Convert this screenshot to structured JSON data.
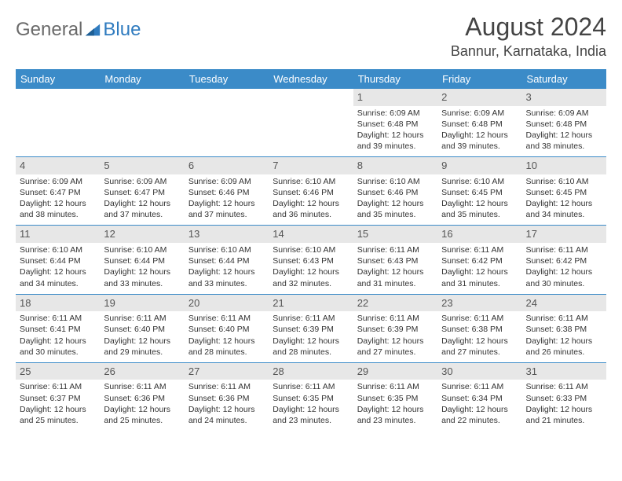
{
  "logo": {
    "general": "General",
    "blue": "Blue"
  },
  "title": "August 2024",
  "location": "Bannur, Karnataka, India",
  "colors": {
    "header_bg": "#3b8bc8",
    "header_text": "#ffffff",
    "daynum_bg": "#e7e7e7",
    "border": "#3b8bc8",
    "text": "#333333",
    "logo_gray": "#6a6a6a",
    "logo_blue": "#2f7bbf"
  },
  "typography": {
    "title_fontsize": 32,
    "location_fontsize": 18,
    "dayhead_fontsize": 13,
    "daynum_fontsize": 13,
    "cell_fontsize": 10.5
  },
  "day_headers": [
    "Sunday",
    "Monday",
    "Tuesday",
    "Wednesday",
    "Thursday",
    "Friday",
    "Saturday"
  ],
  "weeks": [
    [
      {
        "n": "",
        "sr": "",
        "ss": "",
        "dl": ""
      },
      {
        "n": "",
        "sr": "",
        "ss": "",
        "dl": ""
      },
      {
        "n": "",
        "sr": "",
        "ss": "",
        "dl": ""
      },
      {
        "n": "",
        "sr": "",
        "ss": "",
        "dl": ""
      },
      {
        "n": "1",
        "sr": "Sunrise: 6:09 AM",
        "ss": "Sunset: 6:48 PM",
        "dl": "Daylight: 12 hours and 39 minutes."
      },
      {
        "n": "2",
        "sr": "Sunrise: 6:09 AM",
        "ss": "Sunset: 6:48 PM",
        "dl": "Daylight: 12 hours and 39 minutes."
      },
      {
        "n": "3",
        "sr": "Sunrise: 6:09 AM",
        "ss": "Sunset: 6:48 PM",
        "dl": "Daylight: 12 hours and 38 minutes."
      }
    ],
    [
      {
        "n": "4",
        "sr": "Sunrise: 6:09 AM",
        "ss": "Sunset: 6:47 PM",
        "dl": "Daylight: 12 hours and 38 minutes."
      },
      {
        "n": "5",
        "sr": "Sunrise: 6:09 AM",
        "ss": "Sunset: 6:47 PM",
        "dl": "Daylight: 12 hours and 37 minutes."
      },
      {
        "n": "6",
        "sr": "Sunrise: 6:09 AM",
        "ss": "Sunset: 6:46 PM",
        "dl": "Daylight: 12 hours and 37 minutes."
      },
      {
        "n": "7",
        "sr": "Sunrise: 6:10 AM",
        "ss": "Sunset: 6:46 PM",
        "dl": "Daylight: 12 hours and 36 minutes."
      },
      {
        "n": "8",
        "sr": "Sunrise: 6:10 AM",
        "ss": "Sunset: 6:46 PM",
        "dl": "Daylight: 12 hours and 35 minutes."
      },
      {
        "n": "9",
        "sr": "Sunrise: 6:10 AM",
        "ss": "Sunset: 6:45 PM",
        "dl": "Daylight: 12 hours and 35 minutes."
      },
      {
        "n": "10",
        "sr": "Sunrise: 6:10 AM",
        "ss": "Sunset: 6:45 PM",
        "dl": "Daylight: 12 hours and 34 minutes."
      }
    ],
    [
      {
        "n": "11",
        "sr": "Sunrise: 6:10 AM",
        "ss": "Sunset: 6:44 PM",
        "dl": "Daylight: 12 hours and 34 minutes."
      },
      {
        "n": "12",
        "sr": "Sunrise: 6:10 AM",
        "ss": "Sunset: 6:44 PM",
        "dl": "Daylight: 12 hours and 33 minutes."
      },
      {
        "n": "13",
        "sr": "Sunrise: 6:10 AM",
        "ss": "Sunset: 6:44 PM",
        "dl": "Daylight: 12 hours and 33 minutes."
      },
      {
        "n": "14",
        "sr": "Sunrise: 6:10 AM",
        "ss": "Sunset: 6:43 PM",
        "dl": "Daylight: 12 hours and 32 minutes."
      },
      {
        "n": "15",
        "sr": "Sunrise: 6:11 AM",
        "ss": "Sunset: 6:43 PM",
        "dl": "Daylight: 12 hours and 31 minutes."
      },
      {
        "n": "16",
        "sr": "Sunrise: 6:11 AM",
        "ss": "Sunset: 6:42 PM",
        "dl": "Daylight: 12 hours and 31 minutes."
      },
      {
        "n": "17",
        "sr": "Sunrise: 6:11 AM",
        "ss": "Sunset: 6:42 PM",
        "dl": "Daylight: 12 hours and 30 minutes."
      }
    ],
    [
      {
        "n": "18",
        "sr": "Sunrise: 6:11 AM",
        "ss": "Sunset: 6:41 PM",
        "dl": "Daylight: 12 hours and 30 minutes."
      },
      {
        "n": "19",
        "sr": "Sunrise: 6:11 AM",
        "ss": "Sunset: 6:40 PM",
        "dl": "Daylight: 12 hours and 29 minutes."
      },
      {
        "n": "20",
        "sr": "Sunrise: 6:11 AM",
        "ss": "Sunset: 6:40 PM",
        "dl": "Daylight: 12 hours and 28 minutes."
      },
      {
        "n": "21",
        "sr": "Sunrise: 6:11 AM",
        "ss": "Sunset: 6:39 PM",
        "dl": "Daylight: 12 hours and 28 minutes."
      },
      {
        "n": "22",
        "sr": "Sunrise: 6:11 AM",
        "ss": "Sunset: 6:39 PM",
        "dl": "Daylight: 12 hours and 27 minutes."
      },
      {
        "n": "23",
        "sr": "Sunrise: 6:11 AM",
        "ss": "Sunset: 6:38 PM",
        "dl": "Daylight: 12 hours and 27 minutes."
      },
      {
        "n": "24",
        "sr": "Sunrise: 6:11 AM",
        "ss": "Sunset: 6:38 PM",
        "dl": "Daylight: 12 hours and 26 minutes."
      }
    ],
    [
      {
        "n": "25",
        "sr": "Sunrise: 6:11 AM",
        "ss": "Sunset: 6:37 PM",
        "dl": "Daylight: 12 hours and 25 minutes."
      },
      {
        "n": "26",
        "sr": "Sunrise: 6:11 AM",
        "ss": "Sunset: 6:36 PM",
        "dl": "Daylight: 12 hours and 25 minutes."
      },
      {
        "n": "27",
        "sr": "Sunrise: 6:11 AM",
        "ss": "Sunset: 6:36 PM",
        "dl": "Daylight: 12 hours and 24 minutes."
      },
      {
        "n": "28",
        "sr": "Sunrise: 6:11 AM",
        "ss": "Sunset: 6:35 PM",
        "dl": "Daylight: 12 hours and 23 minutes."
      },
      {
        "n": "29",
        "sr": "Sunrise: 6:11 AM",
        "ss": "Sunset: 6:35 PM",
        "dl": "Daylight: 12 hours and 23 minutes."
      },
      {
        "n": "30",
        "sr": "Sunrise: 6:11 AM",
        "ss": "Sunset: 6:34 PM",
        "dl": "Daylight: 12 hours and 22 minutes."
      },
      {
        "n": "31",
        "sr": "Sunrise: 6:11 AM",
        "ss": "Sunset: 6:33 PM",
        "dl": "Daylight: 12 hours and 21 minutes."
      }
    ]
  ]
}
